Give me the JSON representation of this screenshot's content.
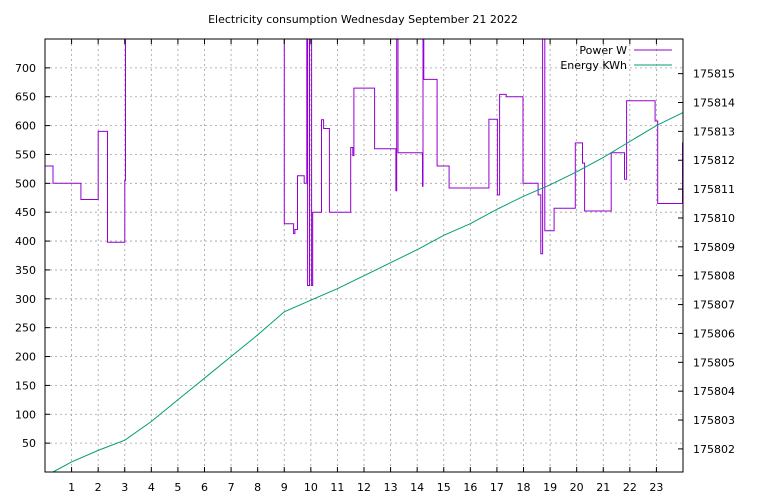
{
  "chart_data": {
    "type": "line",
    "title": "Electricity consumption Wednesday September 21 2022",
    "xlabel": "",
    "ylabel": "",
    "y2label": "",
    "xlim": [
      0,
      24
    ],
    "ylim": [
      0,
      750
    ],
    "y2lim": [
      175801.2,
      175816.2
    ],
    "xticks": [
      1,
      2,
      3,
      4,
      5,
      6,
      7,
      8,
      9,
      10,
      11,
      12,
      13,
      14,
      15,
      16,
      17,
      18,
      19,
      20,
      21,
      22,
      23
    ],
    "yticks": [
      50,
      100,
      150,
      200,
      250,
      300,
      350,
      400,
      450,
      500,
      550,
      600,
      650,
      700
    ],
    "y2ticks": [
      175802,
      175803,
      175804,
      175805,
      175806,
      175807,
      175808,
      175809,
      175810,
      175811,
      175812,
      175813,
      175814,
      175815
    ],
    "grid": true,
    "legend_position": "top-right",
    "series": [
      {
        "name": "Power W",
        "axis": "y",
        "color": "#9400d3",
        "step": true,
        "x": [
          0,
          0.3,
          1.35,
          2,
          2.35,
          2.55,
          3,
          3.03,
          3.08,
          9.0,
          9.03,
          9.35,
          9.4,
          9.5,
          9.75,
          9.85,
          9.88,
          9.95,
          10.03,
          10.07,
          10.4,
          10.48,
          10.7,
          11.4,
          11.5,
          11.58,
          11.62,
          12.4,
          13.2,
          13.23,
          13.28,
          14.2,
          14.22,
          14.25,
          14.75,
          15.2,
          16.2,
          16.7,
          17.02,
          17.1,
          17.35,
          17.98,
          18.55,
          18.65,
          18.72,
          18.8,
          19.15,
          19.45,
          19.95,
          20.22,
          20.3,
          20.95,
          21.3,
          21.8,
          21.88,
          22.2,
          22.95,
          23.05,
          23.6,
          23.98
        ],
        "y": [
          530,
          500,
          472,
          590,
          398,
          398,
          505,
          750,
          750,
          430,
          430,
          413,
          420,
          513,
          500,
          750,
          323,
          750,
          323,
          450,
          610,
          595,
          450,
          450,
          562,
          548,
          665,
          560,
          487,
          750,
          553,
          495,
          750,
          680,
          530,
          492,
          492,
          611,
          480,
          654,
          650,
          500,
          480,
          378,
          750,
          418,
          457,
          457,
          570,
          535,
          452,
          452,
          553,
          507,
          643,
          643,
          608,
          465,
          465,
          570
        ]
      },
      {
        "name": "Energy KWh",
        "axis": "y2",
        "color": "#009e73",
        "step": false,
        "x": [
          0.3,
          1.0,
          2.0,
          3.0,
          4.0,
          5.0,
          6.0,
          7.0,
          8.0,
          9.0,
          10.0,
          11.0,
          12.0,
          13.0,
          14.0,
          15.0,
          16.0,
          17.0,
          18.0,
          19.0,
          20.0,
          21.0,
          22.0,
          23.0,
          24.0
        ],
        "y": [
          175801.2,
          175801.55,
          175801.95,
          175802.3,
          175802.95,
          175803.7,
          175804.45,
          175805.2,
          175805.95,
          175806.75,
          175807.15,
          175807.55,
          175808.0,
          175808.45,
          175808.9,
          175809.4,
          175809.8,
          175810.3,
          175810.75,
          175811.15,
          175811.6,
          175812.1,
          175812.65,
          175813.2,
          175813.65
        ]
      }
    ]
  }
}
